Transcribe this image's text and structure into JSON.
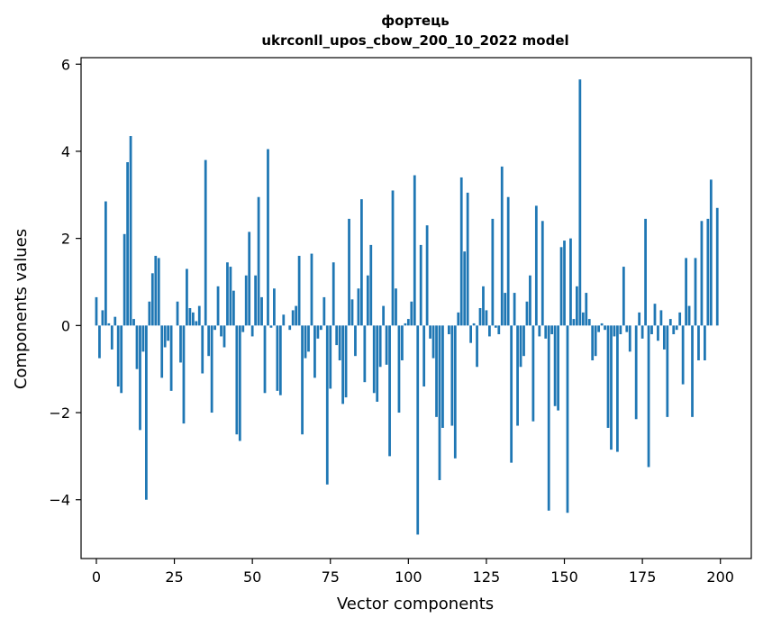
{
  "chart_data": {
    "type": "bar",
    "title": "фортець",
    "subtitle": "ukrconll_upos_cbow_200_10_2022 model",
    "xlabel": "Vector components",
    "ylabel": "Components values",
    "xlim": [
      -4.9,
      209.9
    ],
    "ylim": [
      -5.35,
      6.15
    ],
    "xticks": [
      0,
      25,
      50,
      75,
      100,
      125,
      150,
      175,
      200
    ],
    "xtick_labels": [
      "0",
      "25",
      "50",
      "75",
      "100",
      "125",
      "150",
      "175",
      "200"
    ],
    "yticks": [
      -4,
      -2,
      0,
      2,
      4,
      6
    ],
    "ytick_labels": [
      "−4",
      "−2",
      "0",
      "2",
      "4",
      "6"
    ],
    "bar_color": "#1f77b4",
    "grid": false,
    "x": [
      0,
      1,
      2,
      3,
      4,
      5,
      6,
      7,
      8,
      9,
      10,
      11,
      12,
      13,
      14,
      15,
      16,
      17,
      18,
      19,
      20,
      21,
      22,
      23,
      24,
      25,
      26,
      27,
      28,
      29,
      30,
      31,
      32,
      33,
      34,
      35,
      36,
      37,
      38,
      39,
      40,
      41,
      42,
      43,
      44,
      45,
      46,
      47,
      48,
      49,
      50,
      51,
      52,
      53,
      54,
      55,
      56,
      57,
      58,
      59,
      60,
      61,
      62,
      63,
      64,
      65,
      66,
      67,
      68,
      69,
      70,
      71,
      72,
      73,
      74,
      75,
      76,
      77,
      78,
      79,
      80,
      81,
      82,
      83,
      84,
      85,
      86,
      87,
      88,
      89,
      90,
      91,
      92,
      93,
      94,
      95,
      96,
      97,
      98,
      99,
      100,
      101,
      102,
      103,
      104,
      105,
      106,
      107,
      108,
      109,
      110,
      111,
      112,
      113,
      114,
      115,
      116,
      117,
      118,
      119,
      120,
      121,
      122,
      123,
      124,
      125,
      126,
      127,
      128,
      129,
      130,
      131,
      132,
      133,
      134,
      135,
      136,
      137,
      138,
      139,
      140,
      141,
      142,
      143,
      144,
      145,
      146,
      147,
      148,
      149,
      150,
      151,
      152,
      153,
      154,
      155,
      156,
      157,
      158,
      159,
      160,
      161,
      162,
      163,
      164,
      165,
      166,
      167,
      168,
      169,
      170,
      171,
      172,
      173,
      174,
      175,
      176,
      177,
      178,
      179,
      180,
      181,
      182,
      183,
      184,
      185,
      186,
      187,
      188,
      189,
      190,
      191,
      192,
      193,
      194,
      195,
      196,
      197,
      198,
      199
    ],
    "values": [
      0.65,
      -0.75,
      0.35,
      2.85,
      0.05,
      -0.55,
      0.2,
      -1.4,
      -1.55,
      2.1,
      3.75,
      4.35,
      0.15,
      -1.0,
      -2.4,
      -0.6,
      -4.0,
      0.55,
      1.2,
      1.6,
      1.55,
      -1.2,
      -0.5,
      -0.35,
      -1.5,
      0.0,
      0.55,
      -0.85,
      -2.25,
      1.3,
      0.4,
      0.3,
      0.1,
      0.45,
      -1.1,
      3.8,
      -0.7,
      -2.0,
      -0.1,
      0.9,
      -0.25,
      -0.5,
      1.45,
      1.35,
      0.8,
      -2.5,
      -2.65,
      -0.15,
      1.15,
      2.15,
      -0.25,
      1.15,
      2.95,
      0.65,
      -1.55,
      4.05,
      -0.05,
      0.85,
      -1.5,
      -1.6,
      0.25,
      0.0,
      -0.1,
      0.35,
      0.45,
      1.6,
      -2.5,
      -0.75,
      -0.6,
      1.65,
      -1.2,
      -0.3,
      -0.1,
      0.65,
      -3.65,
      -1.45,
      1.45,
      -0.45,
      -0.8,
      -1.8,
      -1.65,
      2.45,
      0.6,
      -0.7,
      0.85,
      2.9,
      -1.3,
      1.15,
      1.85,
      -1.55,
      -1.75,
      -0.95,
      0.45,
      -0.9,
      -3.0,
      3.1,
      0.85,
      -2.0,
      -0.8,
      0.05,
      0.15,
      0.55,
      3.45,
      -4.8,
      1.85,
      -1.4,
      2.3,
      -0.3,
      -0.75,
      -2.1,
      -3.55,
      -2.35,
      0.0,
      -0.2,
      -2.3,
      -3.05,
      0.3,
      3.4,
      1.7,
      3.05,
      -0.4,
      0.05,
      -0.95,
      0.4,
      0.9,
      0.35,
      -0.25,
      2.45,
      -0.05,
      -0.2,
      3.65,
      0.75,
      2.95,
      -3.15,
      0.75,
      -2.3,
      -0.95,
      -0.7,
      0.55,
      1.15,
      -2.2,
      2.75,
      -0.25,
      2.4,
      -0.3,
      -4.25,
      -0.2,
      -1.85,
      -1.95,
      1.8,
      1.95,
      -4.3,
      2.0,
      0.15,
      0.9,
      5.65,
      0.3,
      0.75,
      0.15,
      -0.8,
      -0.7,
      -0.15,
      0.05,
      -0.1,
      -2.35,
      -2.85,
      -0.25,
      -2.9,
      -0.2,
      1.35,
      -0.15,
      -0.6,
      0.0,
      -2.15,
      0.3,
      -0.3,
      2.45,
      -3.25,
      -0.2,
      0.5,
      -0.35,
      0.35,
      -0.55,
      -2.1,
      0.15,
      -0.2,
      -0.1,
      0.3,
      -1.35,
      1.55,
      0.45,
      -2.1,
      1.55,
      -0.8,
      2.4,
      -0.8,
      2.45,
      3.35,
      0.0,
      2.7
    ]
  }
}
